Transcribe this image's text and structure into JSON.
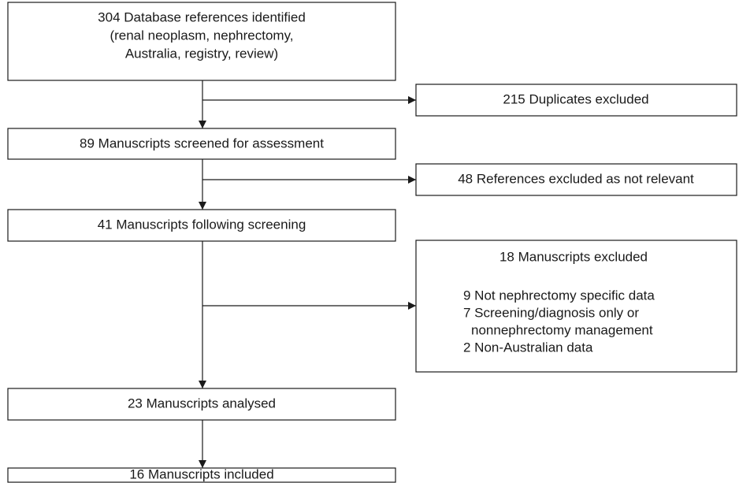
{
  "flow": {
    "main": [
      {
        "lines": [
          "304 Database references identified",
          "(renal neoplasm, nephrectomy,",
          "Australia, registry, review)"
        ]
      },
      {
        "lines": [
          "89 Manuscripts screened for assessment"
        ]
      },
      {
        "lines": [
          "41 Manuscripts following screening"
        ]
      },
      {
        "lines": [
          "23 Manuscripts analysed"
        ]
      },
      {
        "lines": [
          "16 Manuscripts included"
        ]
      }
    ],
    "excluded": [
      {
        "title": "215 Duplicates excluded"
      },
      {
        "title": "48 References excluded as not relevant"
      },
      {
        "title": "18 Manuscripts excluded",
        "reasons": [
          "9 Not nephrectomy specific data",
          "7 Screening/diagnosis only or",
          "nonnephrectomy management",
          "2 Non-Australian data"
        ]
      }
    ]
  }
}
